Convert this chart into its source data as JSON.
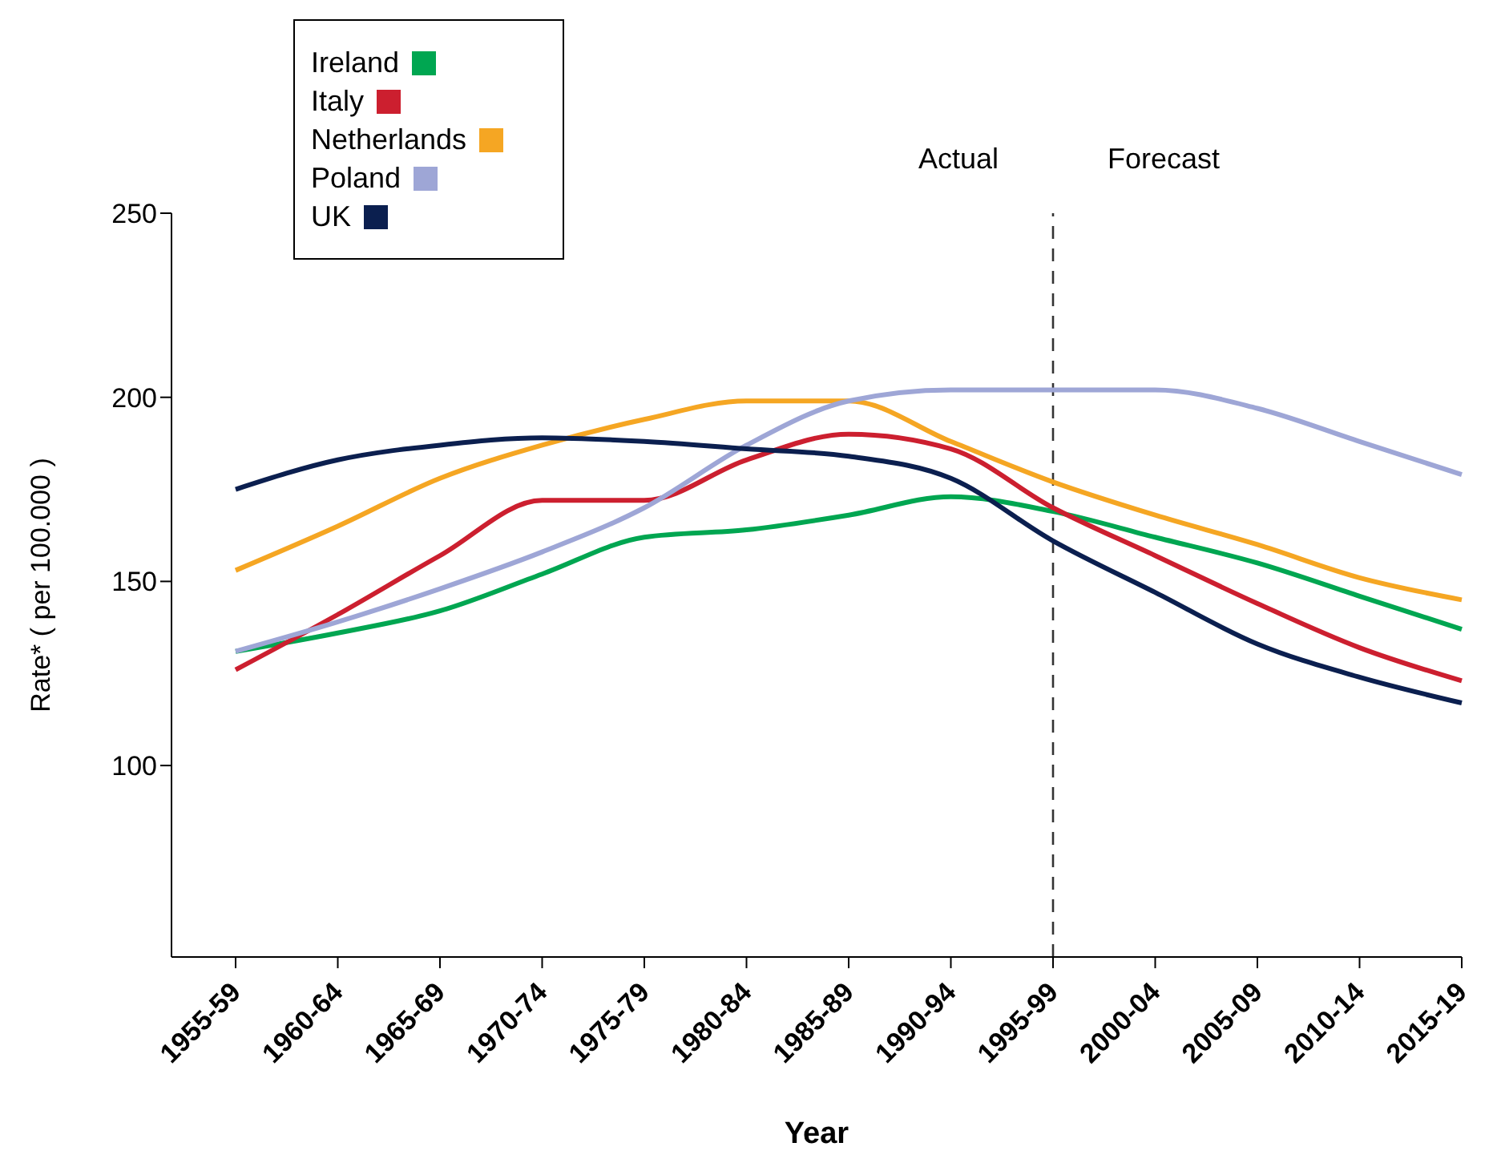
{
  "chart_data": {
    "type": "line",
    "xlabel": "Year",
    "ylabel": "Rate* ( per 100.000 )",
    "categories": [
      "1955-59",
      "1960-64",
      "1965-69",
      "1970-74",
      "1975-79",
      "1980-84",
      "1985-89",
      "1990-94",
      "1995-99",
      "2000-04",
      "2005-09",
      "2010-14",
      "2015-19"
    ],
    "series": [
      {
        "name": "Ireland",
        "color": "#00a651",
        "values": [
          131,
          136,
          142,
          152,
          162,
          164,
          168,
          173,
          169,
          162,
          155,
          146,
          137
        ]
      },
      {
        "name": "Italy",
        "color": "#cc1f2f",
        "values": [
          126,
          141,
          157,
          172,
          172,
          183,
          190,
          186,
          170,
          157,
          144,
          132,
          123
        ]
      },
      {
        "name": "Netherlands",
        "color": "#f5a623",
        "values": [
          153,
          165,
          178,
          187,
          194,
          199,
          199,
          188,
          177,
          168,
          160,
          151,
          145
        ]
      },
      {
        "name": "Poland",
        "color": "#9ea6d6",
        "values": [
          131,
          139,
          148,
          158,
          170,
          187,
          199,
          202,
          202,
          202,
          197,
          188,
          179
        ]
      },
      {
        "name": "UK",
        "color": "#0b1f4f",
        "values": [
          175,
          183,
          187,
          189,
          188,
          186,
          184,
          178,
          161,
          147,
          133,
          124,
          117
        ]
      }
    ],
    "ylim": [
      48,
      250
    ],
    "yticks": [
      100,
      150,
      200,
      250
    ],
    "grid": false,
    "legend": "top left",
    "marker": "none",
    "line_style": "solid",
    "ref_lines": [
      {
        "axis": "x",
        "value": "1995-99",
        "label": null,
        "color": "#333333",
        "line_style": "dashed"
      }
    ],
    "annotations": [
      "Actual",
      "Forecast"
    ]
  }
}
